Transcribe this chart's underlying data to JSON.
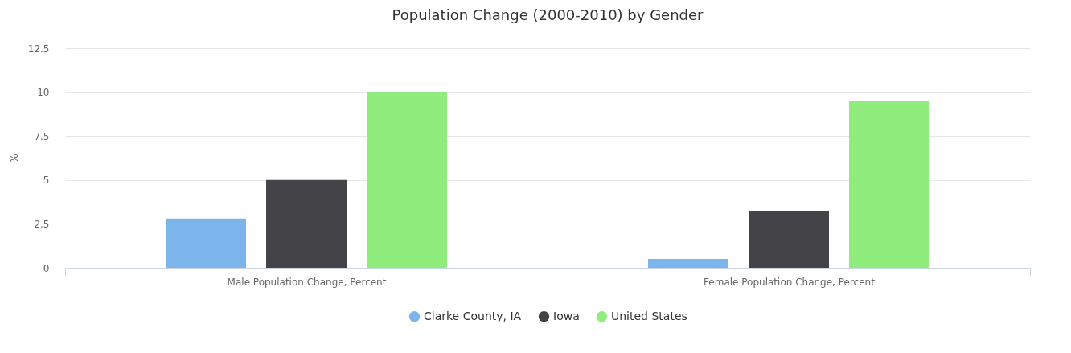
{
  "chart_data": {
    "type": "bar",
    "title": "Population Change (2000-2010) by Gender",
    "ylabel": "%",
    "categories": [
      "Male Population Change, Percent",
      "Female Population Change, Percent"
    ],
    "series": [
      {
        "name": "Clarke County, IA",
        "color": "#7cb5ec",
        "values": [
          2.8,
          0.5
        ]
      },
      {
        "name": "Iowa",
        "color": "#434348",
        "values": [
          5.0,
          3.2
        ]
      },
      {
        "name": "United States",
        "color": "#90ed7d",
        "values": [
          10.0,
          9.5
        ]
      }
    ],
    "ylim": [
      0,
      12.5
    ],
    "yticks": [
      0,
      2.5,
      5,
      7.5,
      10,
      12.5
    ],
    "grid": "y",
    "legend": "bottom"
  }
}
